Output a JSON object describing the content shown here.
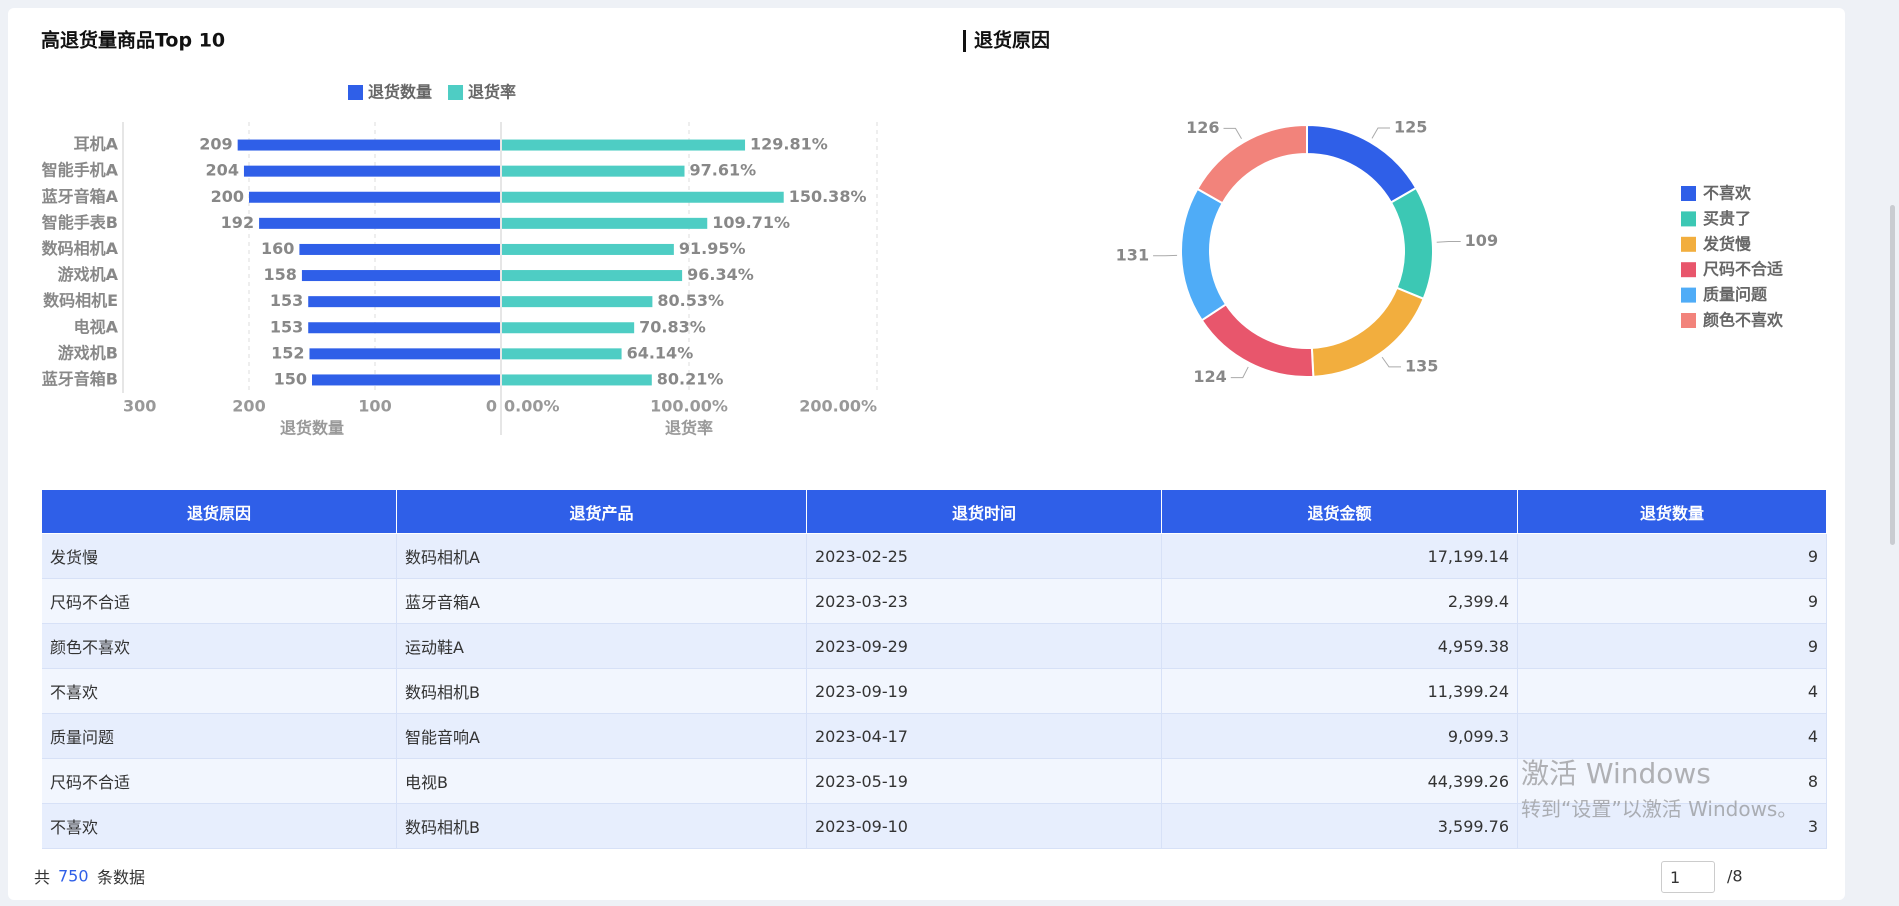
{
  "chart_data": [
    {
      "type": "butterfly-bar",
      "title": "高退货量商品Top 10",
      "categories": [
        "耳机A",
        "智能手机A",
        "蓝牙音箱A",
        "智能手表B",
        "数码相机A",
        "游戏机A",
        "数码相机E",
        "电视A",
        "游戏机B",
        "蓝牙音箱B"
      ],
      "series": [
        {
          "name": "退货数量",
          "color": "#2f5fe8",
          "values": [
            209,
            204,
            200,
            192,
            160,
            158,
            153,
            153,
            152,
            150
          ],
          "xlim": [
            0,
            300
          ],
          "xticks": [
            0,
            100,
            200,
            300
          ],
          "axis_label": "退货数量"
        },
        {
          "name": "退货率",
          "color": "#4ecdc4",
          "values": [
            129.81,
            97.61,
            150.38,
            109.71,
            91.95,
            96.34,
            80.53,
            70.83,
            64.14,
            80.21
          ],
          "value_labels": [
            "129.81%",
            "97.61%",
            "150.38%",
            "109.71%",
            "91.95%",
            "96.34%",
            "80.53%",
            "70.83%",
            "64.14%",
            "80.21%"
          ],
          "xlim": [
            0,
            200
          ],
          "xticks": [
            {
              "value": 0,
              "label": "0.00%"
            },
            {
              "value": 100,
              "label": "100.00%"
            },
            {
              "value": 200,
              "label": "200.00%"
            }
          ],
          "axis_label": "退货率"
        }
      ],
      "legend": "top",
      "grid": true
    },
    {
      "type": "donut",
      "title": "退货原因",
      "categories": [
        "不喜欢",
        "买贵了",
        "发货慢",
        "尺码不合适",
        "质量问题",
        "颜色不喜欢"
      ],
      "values": [
        125,
        109,
        135,
        124,
        131,
        126
      ],
      "colors": [
        "#2f5fe8",
        "#3cc8b4",
        "#f2ae3e",
        "#e8566c",
        "#4facf7",
        "#f2837b"
      ],
      "legend": "right"
    }
  ],
  "table": {
    "columns": [
      "退货原因",
      "退货产品",
      "退货时间",
      "退货金额",
      "退货数量"
    ],
    "rows": [
      [
        "发货慢",
        "数码相机A",
        "2023-02-25",
        "17,199.14",
        9
      ],
      [
        "尺码不合适",
        "蓝牙音箱A",
        "2023-03-23",
        "2,399.4",
        9
      ],
      [
        "颜色不喜欢",
        "运动鞋A",
        "2023-09-29",
        "4,959.38",
        9
      ],
      [
        "不喜欢",
        "数码相机B",
        "2023-09-19",
        "11,399.24",
        4
      ],
      [
        "质量问题",
        "智能音响A",
        "2023-04-17",
        "9,099.3",
        4
      ],
      [
        "尺码不合适",
        "电视B",
        "2023-05-19",
        "44,399.26",
        8
      ],
      [
        "不喜欢",
        "数码相机B",
        "2023-09-10",
        "3,599.76",
        3
      ]
    ]
  },
  "footer": {
    "prefix": "共",
    "total": 750,
    "suffix": "条数据",
    "page": 1,
    "page_count": "/8"
  },
  "watermark": {
    "line1": "激活 Windows",
    "line2": "转到“设置”以激活 Windows。"
  }
}
